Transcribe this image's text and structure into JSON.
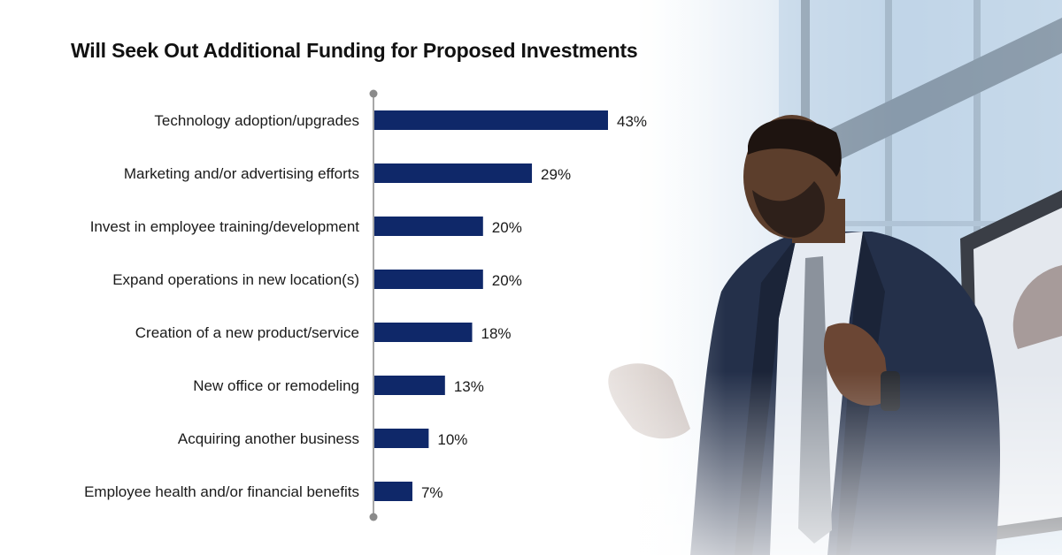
{
  "chart_data": {
    "type": "bar",
    "orientation": "horizontal",
    "title": "Will Seek Out Additional Funding for Proposed Investments",
    "categories": [
      "Technology adoption/upgrades",
      "Marketing and/or advertising efforts",
      "Invest in employee training/development",
      "Expand operations in new location(s)",
      "Creation of a new product/service",
      "New office or remodeling",
      "Acquiring another business",
      "Employee health and/or financial benefits"
    ],
    "values": [
      43,
      29,
      20,
      20,
      18,
      13,
      10,
      7
    ],
    "value_labels": [
      "43%",
      "29%",
      "20%",
      "20%",
      "18%",
      "13%",
      "10%",
      "7%"
    ],
    "unit": "%",
    "xlim": [
      0,
      100
    ],
    "grid": false,
    "legend": "none",
    "bar_color": "#0f2869",
    "axis_color": "#8a8a8a"
  },
  "background": {
    "image": "presenter-photo",
    "colors": {
      "sky": "#cfdfee",
      "suit": "#24304a",
      "shirt": "#e6ebf2",
      "skin": "#5c3e2c"
    }
  }
}
